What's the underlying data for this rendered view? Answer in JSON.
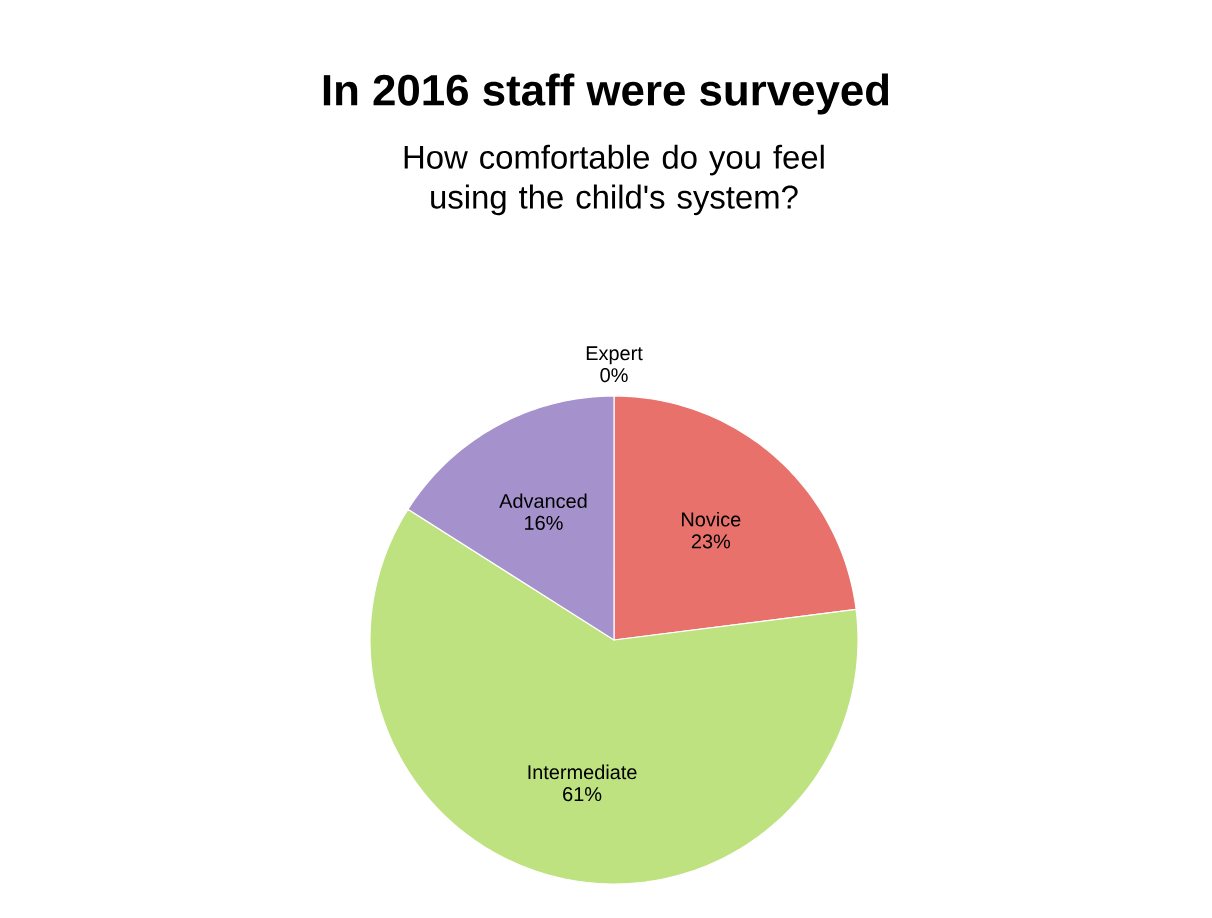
{
  "chart_data": {
    "type": "pie",
    "title": "In 2016 staff were surveyed",
    "subtitle": "How comfortable do you feel using the child's system?",
    "categories": [
      "Novice",
      "Intermediate",
      "Advanced",
      "Expert"
    ],
    "values": [
      23,
      61,
      16,
      0
    ],
    "colors": [
      "#e8716b",
      "#bde27f",
      "#a591cc",
      "#7fa6d9"
    ],
    "value_labels": [
      "23%",
      "61%",
      "16%",
      "0%"
    ]
  }
}
